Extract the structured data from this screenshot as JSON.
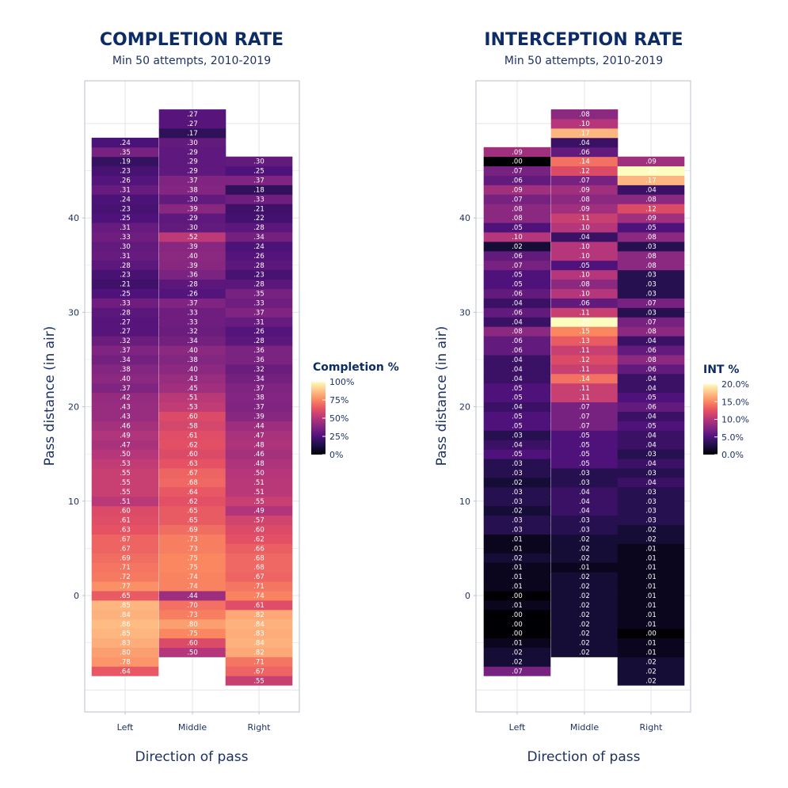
{
  "colormap": [
    "#000004",
    "#1c1044",
    "#4f127b",
    "#812581",
    "#b5367a",
    "#e55064",
    "#fb8761",
    "#fec287",
    "#fcfdbf"
  ],
  "colors": {
    "title": "#0d2b66",
    "text": "#1d3163",
    "grid": "#e4e4ea",
    "frame": "#b9bfcf"
  },
  "chart_data": [
    {
      "type": "heatmap",
      "title": "COMPLETION RATE",
      "subtitle": "Min 50 attempts, 2010-2019",
      "xlabel": "Direction of pass",
      "ylabel": "Pass distance (in air)",
      "categories": [
        "Left",
        "Middle",
        "Right"
      ],
      "y_ticks": [
        0,
        10,
        20,
        30,
        40
      ],
      "ylim": [
        -12,
        54
      ],
      "value_range": [
        0,
        1
      ],
      "legend": {
        "title": "Completion %",
        "ticks": [
          0,
          0.25,
          0.5,
          0.75,
          1
        ],
        "tick_labels": [
          "0%",
          "25%",
          "50%",
          "75%",
          "100%"
        ]
      },
      "columns": [
        {
          "name": "Left",
          "y_start": -8,
          "labels": [
            ".64",
            ".78",
            ".80",
            ".83",
            ".85",
            ".86",
            ".84",
            ".85",
            ".65",
            ".77",
            ".72",
            ".71",
            ".69",
            ".67",
            ".67",
            ".63",
            ".61",
            ".60",
            ".51",
            ".55",
            ".55",
            ".55",
            ".53",
            ".50",
            ".47",
            ".49",
            ".46",
            ".43",
            ".43",
            ".42",
            ".37",
            ".40",
            ".38",
            ".34",
            ".37",
            ".32",
            ".27",
            ".27",
            ".28",
            ".33",
            ".25",
            ".21",
            ".23",
            ".28",
            ".31",
            ".30",
            ".33",
            ".31",
            ".25",
            ".23",
            ".24",
            ".31",
            ".26",
            ".23",
            ".19",
            ".35",
            ".24"
          ]
        },
        {
          "name": "Middle",
          "y_start": -6,
          "labels": [
            ".50",
            ".60",
            ".75",
            ".80",
            ".73",
            ".70",
            ".44",
            ".74",
            ".74",
            ".75",
            ".75",
            ".73",
            ".73",
            ".69",
            ".65",
            ".65",
            ".62",
            ".64",
            ".68",
            ".67",
            ".63",
            ".60",
            ".62",
            ".61",
            ".58",
            ".60",
            ".53",
            ".51",
            ".45",
            ".43",
            ".40",
            ".38",
            ".40",
            ".34",
            ".32",
            ".33",
            ".33",
            ".37",
            ".26",
            ".28",
            ".36",
            ".39",
            ".40",
            ".39",
            ".52",
            ".30",
            ".29",
            ".39",
            ".30",
            ".38",
            ".37",
            ".29",
            ".29",
            ".29",
            ".30",
            ".17",
            ".27",
            ".27"
          ]
        },
        {
          "name": "Right",
          "y_start": -9,
          "labels": [
            ".55",
            ".67",
            ".71",
            ".82",
            ".84",
            ".83",
            ".84",
            ".82",
            ".61",
            ".74",
            ".71",
            ".67",
            ".68",
            ".68",
            ".66",
            ".62",
            ".60",
            ".57",
            ".49",
            ".55",
            ".51",
            ".51",
            ".50",
            ".48",
            ".46",
            ".48",
            ".47",
            ".44",
            ".39",
            ".37",
            ".38",
            ".37",
            ".34",
            ".32",
            ".36",
            ".36",
            ".28",
            ".26",
            ".31",
            ".37",
            ".33",
            ".35",
            ".28",
            ".23",
            ".28",
            ".26",
            ".24",
            ".34",
            ".28",
            ".22",
            ".21",
            ".33",
            ".18",
            ".37",
            ".25",
            ".30"
          ]
        }
      ]
    },
    {
      "type": "heatmap",
      "title": "INTERCEPTION RATE",
      "subtitle": "Min 50 attempts, 2010-2019",
      "xlabel": "Direction of pass",
      "ylabel": "Pass distance (in air)",
      "categories": [
        "Left",
        "Middle",
        "Right"
      ],
      "y_ticks": [
        0,
        10,
        20,
        30,
        40
      ],
      "ylim": [
        -12,
        54
      ],
      "value_range": [
        0,
        0.2
      ],
      "legend": {
        "title": "INT %",
        "ticks": [
          0,
          0.05,
          0.1,
          0.15,
          0.2
        ],
        "tick_labels": [
          "0.0%",
          "5.0%",
          "10.0%",
          "15.0%",
          "20.0%"
        ]
      },
      "columns": [
        {
          "name": "Left",
          "y_start": -8,
          "labels": [
            ".07",
            ".02",
            ".02",
            ".01",
            ".00",
            ".00",
            ".00",
            ".01",
            ".00",
            ".01",
            ".01",
            ".01",
            ".02",
            ".01",
            ".01",
            ".03",
            ".03",
            ".02",
            ".03",
            ".03",
            ".02",
            ".03",
            ".03",
            ".05",
            ".04",
            ".03",
            ".05",
            ".05",
            ".04",
            ".05",
            ".05",
            ".04",
            ".04",
            ".04",
            ".06",
            ".06",
            ".08",
            ".04",
            ".06",
            ".04",
            ".06",
            ".05",
            ".05",
            ".07",
            ".06",
            ".02",
            ".10",
            ".05",
            ".08",
            ".08",
            ".07",
            ".09",
            ".06",
            ".07",
            ".00",
            ".09"
          ]
        },
        {
          "name": "Middle",
          "y_start": -6,
          "labels": [
            ".02",
            ".02",
            ".02",
            ".02",
            ".02",
            ".02",
            ".02",
            ".02",
            ".02",
            ".01",
            ".02",
            ".02",
            ".02",
            ".03",
            ".03",
            ".04",
            ".04",
            ".04",
            ".03",
            ".03",
            ".05",
            ".05",
            ".05",
            ".05",
            ".07",
            ".07",
            ".07",
            ".11",
            ".11",
            ".14",
            ".11",
            ".12",
            ".11",
            ".13",
            ".15",
            ".20",
            ".11",
            ".06",
            ".10",
            ".08",
            ".10",
            ".05",
            ".10",
            ".10",
            ".04",
            ".10",
            ".11",
            ".09",
            ".08",
            ".09",
            ".07",
            ".12",
            ".14",
            ".06",
            ".04",
            ".17",
            ".10",
            ".08"
          ]
        },
        {
          "name": "Right",
          "y_start": -9,
          "labels": [
            ".02",
            ".02",
            ".02",
            ".01",
            ".01",
            ".00",
            ".01",
            ".01",
            ".01",
            ".01",
            ".01",
            ".01",
            ".01",
            ".01",
            ".01",
            ".02",
            ".02",
            ".03",
            ".03",
            ".03",
            ".03",
            ".04",
            ".03",
            ".04",
            ".03",
            ".04",
            ".04",
            ".05",
            ".04",
            ".06",
            ".05",
            ".04",
            ".04",
            ".06",
            ".08",
            ".06",
            ".04",
            ".08",
            ".07",
            ".03",
            ".07",
            ".03",
            ".03",
            ".03",
            ".08",
            ".08",
            ".03",
            ".08",
            ".05",
            ".09",
            ".12",
            ".08",
            ".04",
            ".17",
            ".20",
            ".09"
          ]
        }
      ]
    }
  ]
}
